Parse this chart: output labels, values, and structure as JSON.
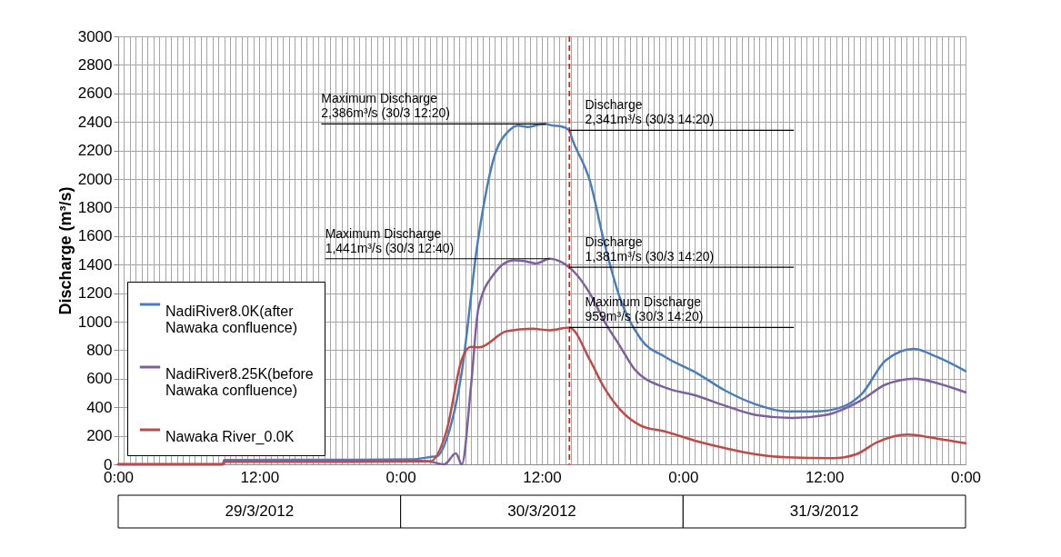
{
  "chart_data": {
    "type": "line",
    "ylabel": "Discharge (m³/s)",
    "xlim": [
      "2012-03-29T00:00",
      "2012-04-01T00:00"
    ],
    "ylim": [
      0,
      3000
    ],
    "xticks": [
      {
        "value": "2012-03-29T00:00",
        "label": "0:00"
      },
      {
        "value": "2012-03-29T00:30",
        "label": null
      },
      {
        "value": "2012-03-29T01:00",
        "label": null
      },
      {
        "value": "2012-03-29T01:30",
        "label": null
      },
      {
        "value": "2012-03-29T02:00",
        "label": null
      },
      {
        "value": "2012-03-29T02:30",
        "label": null
      },
      {
        "value": "2012-03-29T03:00",
        "label": null
      },
      {
        "value": "2012-03-29T03:30",
        "label": null
      },
      {
        "value": "2012-03-29T04:00",
        "label": null
      },
      {
        "value": "2012-03-29T04:30",
        "label": null
      },
      {
        "value": "2012-03-29T05:00",
        "label": null
      },
      {
        "value": "2012-03-29T05:30",
        "label": null
      },
      {
        "value": "2012-03-29T06:00",
        "label": null
      },
      {
        "value": "2012-03-29T06:30",
        "label": null
      },
      {
        "value": "2012-03-29T07:00",
        "label": null
      },
      {
        "value": "2012-03-29T07:30",
        "label": null
      },
      {
        "value": "2012-03-29T08:00",
        "label": null
      },
      {
        "value": "2012-03-29T08:30",
        "label": null
      },
      {
        "value": "2012-03-29T09:00",
        "label": null
      },
      {
        "value": "2012-03-29T09:30",
        "label": null
      },
      {
        "value": "2012-03-29T10:00",
        "label": null
      },
      {
        "value": "2012-03-29T10:30",
        "label": null
      },
      {
        "value": "2012-03-29T11:00",
        "label": null
      },
      {
        "value": "2012-03-29T11:30",
        "label": null
      },
      {
        "value": "2012-03-29T12:00",
        "label": "12:00"
      },
      {
        "value": "2012-03-29T12:30",
        "label": null
      },
      {
        "value": "2012-03-29T13:00",
        "label": null
      },
      {
        "value": "2012-03-29T13:30",
        "label": null
      },
      {
        "value": "2012-03-29T14:00",
        "label": null
      },
      {
        "value": "2012-03-29T14:30",
        "label": null
      },
      {
        "value": "2012-03-29T15:00",
        "label": null
      },
      {
        "value": "2012-03-29T15:30",
        "label": null
      },
      {
        "value": "2012-03-29T16:00",
        "label": null
      },
      {
        "value": "2012-03-29T16:30",
        "label": null
      },
      {
        "value": "2012-03-29T17:00",
        "label": null
      },
      {
        "value": "2012-03-29T17:30",
        "label": null
      },
      {
        "value": "2012-03-29T18:00",
        "label": null
      },
      {
        "value": "2012-03-29T18:30",
        "label": null
      },
      {
        "value": "2012-03-29T19:00",
        "label": null
      },
      {
        "value": "2012-03-29T19:30",
        "label": null
      },
      {
        "value": "2012-03-29T20:00",
        "label": null
      },
      {
        "value": "2012-03-29T20:30",
        "label": null
      },
      {
        "value": "2012-03-29T21:00",
        "label": null
      },
      {
        "value": "2012-03-29T21:30",
        "label": null
      },
      {
        "value": "2012-03-29T22:00",
        "label": null
      },
      {
        "value": "2012-03-29T22:30",
        "label": null
      },
      {
        "value": "2012-03-29T23:00",
        "label": null
      },
      {
        "value": "2012-03-29T23:30",
        "label": null
      },
      {
        "value": "2012-03-30T00:00",
        "label": "0:00"
      },
      {
        "value": "2012-03-30T00:30",
        "label": null
      },
      {
        "value": "2012-03-30T01:00",
        "label": null
      },
      {
        "value": "2012-03-30T01:30",
        "label": null
      },
      {
        "value": "2012-03-30T02:00",
        "label": null
      },
      {
        "value": "2012-03-30T02:30",
        "label": null
      },
      {
        "value": "2012-03-30T03:00",
        "label": null
      },
      {
        "value": "2012-03-30T03:30",
        "label": null
      },
      {
        "value": "2012-03-30T04:00",
        "label": null
      },
      {
        "value": "2012-03-30T04:30",
        "label": null
      },
      {
        "value": "2012-03-30T05:00",
        "label": null
      },
      {
        "value": "2012-03-30T05:30",
        "label": null
      },
      {
        "value": "2012-03-30T06:00",
        "label": null
      },
      {
        "value": "2012-03-30T06:30",
        "label": null
      },
      {
        "value": "2012-03-30T07:00",
        "label": null
      },
      {
        "value": "2012-03-30T07:30",
        "label": null
      },
      {
        "value": "2012-03-30T08:00",
        "label": null
      },
      {
        "value": "2012-03-30T08:30",
        "label": null
      },
      {
        "value": "2012-03-30T09:00",
        "label": null
      },
      {
        "value": "2012-03-30T09:30",
        "label": null
      },
      {
        "value": "2012-03-30T10:00",
        "label": null
      },
      {
        "value": "2012-03-30T10:30",
        "label": null
      },
      {
        "value": "2012-03-30T11:00",
        "label": null
      },
      {
        "value": "2012-03-30T11:30",
        "label": null
      },
      {
        "value": "2012-03-30T12:00",
        "label": "12:00"
      },
      {
        "value": "2012-03-30T12:30",
        "label": null
      },
      {
        "value": "2012-03-30T13:00",
        "label": null
      },
      {
        "value": "2012-03-30T13:30",
        "label": null
      },
      {
        "value": "2012-03-30T14:00",
        "label": null
      },
      {
        "value": "2012-03-30T14:30",
        "label": null
      },
      {
        "value": "2012-03-30T15:00",
        "label": null
      },
      {
        "value": "2012-03-30T15:30",
        "label": null
      },
      {
        "value": "2012-03-30T16:00",
        "label": null
      },
      {
        "value": "2012-03-30T16:30",
        "label": null
      },
      {
        "value": "2012-03-30T17:00",
        "label": null
      },
      {
        "value": "2012-03-30T17:30",
        "label": null
      },
      {
        "value": "2012-03-30T18:00",
        "label": null
      },
      {
        "value": "2012-03-30T18:30",
        "label": null
      },
      {
        "value": "2012-03-30T19:00",
        "label": null
      },
      {
        "value": "2012-03-30T19:30",
        "label": null
      },
      {
        "value": "2012-03-30T20:00",
        "label": null
      },
      {
        "value": "2012-03-30T20:30",
        "label": null
      },
      {
        "value": "2012-03-30T21:00",
        "label": null
      },
      {
        "value": "2012-03-30T21:30",
        "label": null
      },
      {
        "value": "2012-03-30T22:00",
        "label": null
      },
      {
        "value": "2012-03-30T22:30",
        "label": null
      },
      {
        "value": "2012-03-30T23:00",
        "label": null
      },
      {
        "value": "2012-03-30T23:30",
        "label": null
      },
      {
        "value": "2012-03-31T00:00",
        "label": "0:00"
      },
      {
        "value": "2012-03-31T00:30",
        "label": null
      },
      {
        "value": "2012-03-31T01:00",
        "label": null
      },
      {
        "value": "2012-03-31T01:30",
        "label": null
      },
      {
        "value": "2012-03-31T02:00",
        "label": null
      },
      {
        "value": "2012-03-31T02:30",
        "label": null
      },
      {
        "value": "2012-03-31T03:00",
        "label": null
      },
      {
        "value": "2012-03-31T03:30",
        "label": null
      },
      {
        "value": "2012-03-31T04:00",
        "label": null
      },
      {
        "value": "2012-03-31T04:30",
        "label": null
      },
      {
        "value": "2012-03-31T05:00",
        "label": null
      },
      {
        "value": "2012-03-31T05:30",
        "label": null
      },
      {
        "value": "2012-03-31T06:00",
        "label": null
      },
      {
        "value": "2012-03-31T06:30",
        "label": null
      },
      {
        "value": "2012-03-31T07:00",
        "label": null
      },
      {
        "value": "2012-03-31T07:30",
        "label": null
      },
      {
        "value": "2012-03-31T08:00",
        "label": null
      },
      {
        "value": "2012-03-31T08:30",
        "label": null
      },
      {
        "value": "2012-03-31T09:00",
        "label": null
      },
      {
        "value": "2012-03-31T09:30",
        "label": null
      },
      {
        "value": "2012-03-31T10:00",
        "label": null
      },
      {
        "value": "2012-03-31T10:30",
        "label": null
      },
      {
        "value": "2012-03-31T11:00",
        "label": null
      },
      {
        "value": "2012-03-31T11:30",
        "label": null
      },
      {
        "value": "2012-03-31T12:00",
        "label": "12:00"
      },
      {
        "value": "2012-03-31T12:30",
        "label": null
      },
      {
        "value": "2012-03-31T13:00",
        "label": null
      },
      {
        "value": "2012-03-31T13:30",
        "label": null
      },
      {
        "value": "2012-03-31T14:00",
        "label": null
      },
      {
        "value": "2012-03-31T14:30",
        "label": null
      },
      {
        "value": "2012-03-31T15:00",
        "label": null
      },
      {
        "value": "2012-03-31T15:30",
        "label": null
      },
      {
        "value": "2012-03-31T16:00",
        "label": null
      },
      {
        "value": "2012-03-31T16:30",
        "label": null
      },
      {
        "value": "2012-03-31T17:00",
        "label": null
      },
      {
        "value": "2012-03-31T17:30",
        "label": null
      },
      {
        "value": "2012-03-31T18:00",
        "label": null
      },
      {
        "value": "2012-03-31T18:30",
        "label": null
      },
      {
        "value": "2012-03-31T19:00",
        "label": null
      },
      {
        "value": "2012-03-31T19:30",
        "label": null
      },
      {
        "value": "2012-03-31T20:00",
        "label": null
      },
      {
        "value": "2012-03-31T20:30",
        "label": null
      },
      {
        "value": "2012-03-31T21:00",
        "label": null
      },
      {
        "value": "2012-03-31T21:30",
        "label": null
      },
      {
        "value": "2012-03-31T22:00",
        "label": null
      },
      {
        "value": "2012-03-31T22:30",
        "label": null
      },
      {
        "value": "2012-03-31T23:00",
        "label": null
      },
      {
        "value": "2012-03-31T23:30",
        "label": null
      },
      {
        "value": "2012-04-01T00:00",
        "label": "0:00"
      }
    ],
    "yticks": [
      0,
      200,
      400,
      600,
      800,
      1000,
      1200,
      1400,
      1600,
      1800,
      2000,
      2200,
      2400,
      2600,
      2800,
      3000
    ],
    "grid": true,
    "legend": "bottom left",
    "line_style": "solid",
    "series": [
      {
        "name": "NadiRiver8.0K(after Nawaka confluence)",
        "color": "#4a7ebb",
        "x": [
          "2012-03-29T00:00",
          "2012-03-29T08:54",
          "2012-03-29T09:00",
          "2012-03-29T15:00",
          "2012-03-29T20:00",
          "2012-03-30T01:00",
          "2012-03-30T02:24",
          "2012-03-30T03:06",
          "2012-03-30T04:00",
          "2012-03-30T05:12",
          "2012-03-30T06:30",
          "2012-03-30T07:54",
          "2012-03-30T09:12",
          "2012-03-30T10:00",
          "2012-03-30T10:48",
          "2012-03-30T11:42",
          "2012-03-30T12:20",
          "2012-03-30T12:54",
          "2012-03-30T13:36",
          "2012-03-30T14:20",
          "2012-03-30T14:30",
          "2012-03-30T16:06",
          "2012-03-30T17:18",
          "2012-03-30T18:36",
          "2012-03-30T20:24",
          "2012-03-30T22:30",
          "2012-03-31T01:06",
          "2012-03-31T03:36",
          "2012-03-31T06:12",
          "2012-03-31T08:48",
          "2012-03-31T11:18",
          "2012-03-31T13:24",
          "2012-03-31T15:12",
          "2012-03-31T17:12",
          "2012-03-31T19:36",
          "2012-03-31T21:36",
          "2012-04-01T00:00"
        ],
        "values": [
          0,
          0,
          30,
          32,
          32,
          35,
          50,
          57,
          200,
          650,
          1529,
          2141,
          2339,
          2375,
          2365,
          2380,
          2386,
          2375,
          2370,
          2341,
          2299,
          1981,
          1556,
          1174,
          879,
          752,
          643,
          516,
          420,
          371,
          371,
          399,
          495,
          728,
          809,
          752,
          654
        ]
      },
      {
        "name": "NadiRiver8.25K(before Nawaka confluence)",
        "color": "#7d60a0",
        "x": [
          "2012-03-29T00:00",
          "2012-03-29T08:54",
          "2012-03-29T09:00",
          "2012-03-29T15:00",
          "2012-03-29T20:00",
          "2012-03-30T01:00",
          "2012-03-30T02:24",
          "2012-03-30T03:42",
          "2012-03-30T04:42",
          "2012-03-30T05:12",
          "2012-03-30T05:58",
          "2012-03-30T06:36",
          "2012-03-30T07:54",
          "2012-03-30T09:36",
          "2012-03-30T10:30",
          "2012-03-30T11:30",
          "2012-03-30T12:40",
          "2012-03-30T13:30",
          "2012-03-30T14:20",
          "2012-03-30T14:48",
          "2012-03-30T16:06",
          "2012-03-30T17:18",
          "2012-03-30T18:36",
          "2012-03-30T19:54",
          "2012-03-30T22:30",
          "2012-03-31T01:00",
          "2012-03-31T03:36",
          "2012-03-31T06:12",
          "2012-03-31T09:18",
          "2012-03-31T12:06",
          "2012-03-31T15:12",
          "2012-03-31T17:12",
          "2012-03-31T19:42",
          "2012-03-31T21:36",
          "2012-04-01T00:00"
        ],
        "values": [
          0,
          0,
          22,
          22,
          22,
          25,
          20,
          0,
          76,
          0,
          537,
          1089,
          1331,
          1430,
          1425,
          1408,
          1441,
          1425,
          1381,
          1344,
          1195,
          1004,
          834,
          664,
          537,
          484,
          410,
          346,
          325,
          346,
          452,
          559,
          601,
          569,
          505
        ]
      },
      {
        "name": "Nawaka River_0.0K",
        "color": "#be4b48",
        "x": [
          "2012-03-29T00:00",
          "2012-03-29T08:54",
          "2012-03-29T09:00",
          "2012-03-29T15:00",
          "2012-03-29T20:00",
          "2012-03-30T01:00",
          "2012-03-30T02:30",
          "2012-03-30T03:54",
          "2012-03-30T05:12",
          "2012-03-30T05:57",
          "2012-03-30T06:42",
          "2012-03-30T09:00",
          "2012-03-30T11:12",
          "2012-03-30T12:36",
          "2012-03-30T14:20",
          "2012-03-30T16:06",
          "2012-03-30T17:18",
          "2012-03-30T18:36",
          "2012-03-30T20:24",
          "2012-03-30T22:30",
          "2012-03-31T01:00",
          "2012-03-31T03:36",
          "2012-03-31T06:12",
          "2012-03-31T08:48",
          "2012-03-31T12:42",
          "2012-03-31T14:42",
          "2012-03-31T16:30",
          "2012-03-31T19:06",
          "2012-03-31T21:36",
          "2012-04-01T00:00"
        ],
        "values": [
          0,
          0,
          18,
          18,
          18,
          20,
          20,
          234,
          736,
          823,
          820,
          933,
          950,
          940,
          959,
          728,
          537,
          388,
          272,
          229,
          166,
          113,
          70,
          49,
          43,
          70,
          155,
          208,
          180,
          148
        ]
      }
    ],
    "ref_lines": [
      {
        "axis": "x",
        "value": "2012-03-30T14:20",
        "color": "#ff0000",
        "line_style": "dashed"
      }
    ],
    "annotations": [
      {
        "text": "Maximum Discharge\n2,386m³/s (30/3 12:20)",
        "x": "2012-03-30T12:20",
        "y": 2386
      },
      {
        "text": "Discharge\n2,341m³/s (30/3 14:20)",
        "x": "2012-03-30T14:20",
        "y": 2341
      },
      {
        "text": "Maximum Discharge\n1,441m³/s (30/3 12:40)",
        "x": "2012-03-30T12:40",
        "y": 1441
      },
      {
        "text": "Discharge\n1,381m³/s (30/3 14:20)",
        "x": "2012-03-30T14:20",
        "y": 1381
      },
      {
        "text": "Maximum Discharge\n959m³/s (30/3 14:20)",
        "x": "2012-03-30T14:20",
        "y": 959
      },
      "29/3/2012",
      "30/3/2012",
      "31/3/2012"
    ]
  }
}
